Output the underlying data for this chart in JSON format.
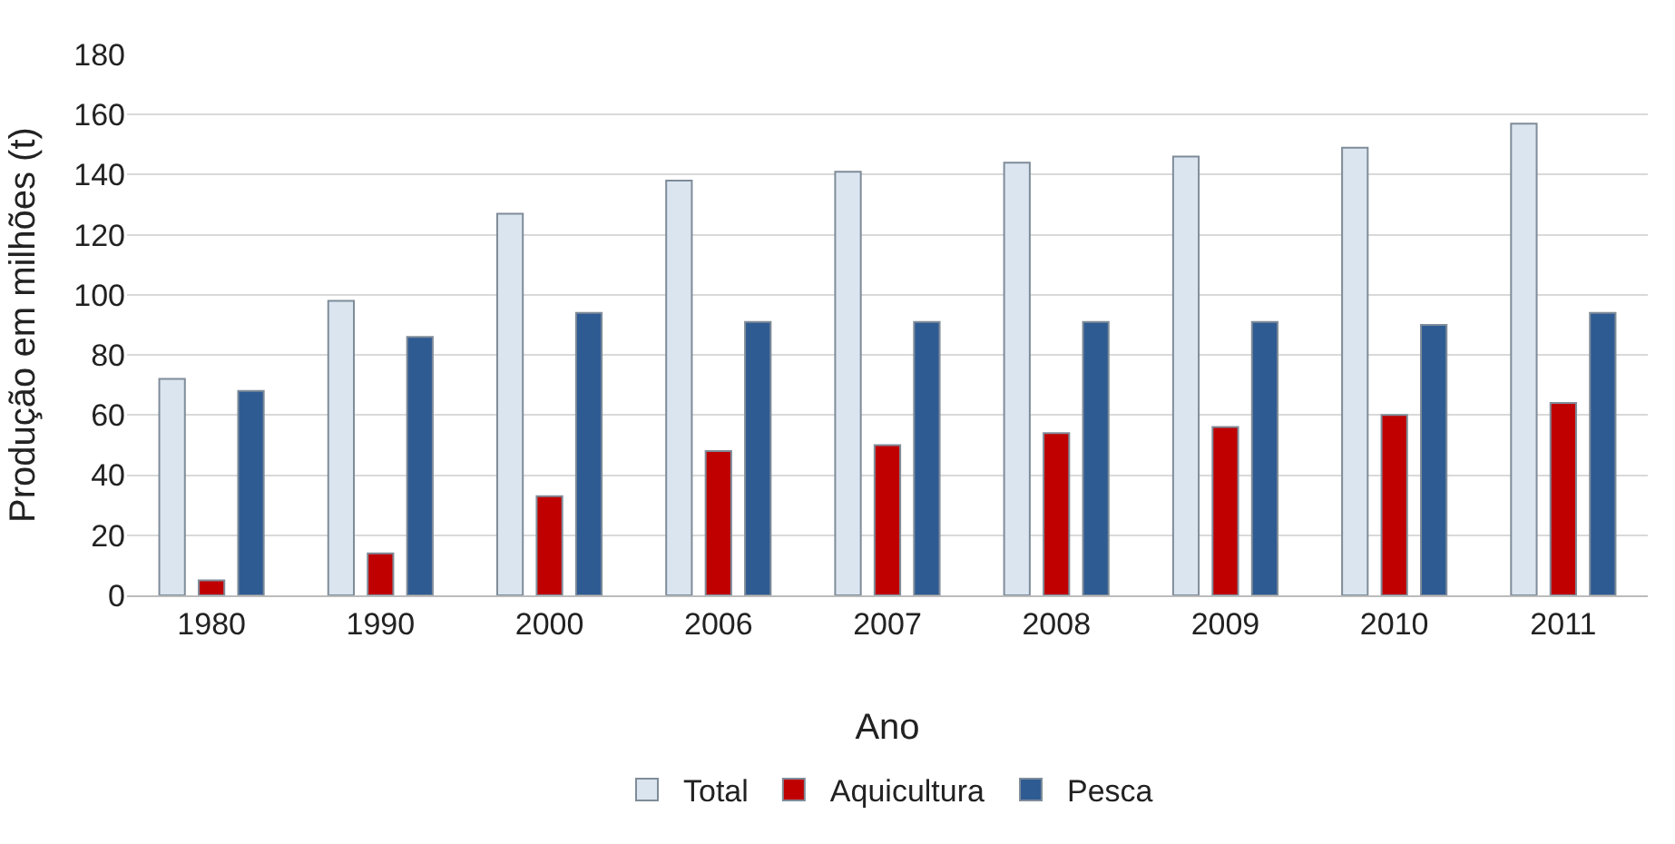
{
  "chart_data": {
    "type": "bar",
    "xlabel": "Ano",
    "ylabel": "Produção em milhões (t)",
    "categories": [
      "1980",
      "1990",
      "2000",
      "2006",
      "2007",
      "2008",
      "2009",
      "2010",
      "2011"
    ],
    "series": [
      {
        "name": "Total",
        "color": "#dbe5f0",
        "values": [
          72,
          98,
          127,
          138,
          141,
          144,
          146,
          149,
          157
        ]
      },
      {
        "name": "Aquicultura",
        "color": "#c00000",
        "values": [
          5,
          14,
          33,
          48,
          50,
          54,
          56,
          60,
          64
        ]
      },
      {
        "name": "Pesca",
        "color": "#2f5b93",
        "values": [
          68,
          86,
          94,
          91,
          91,
          91,
          91,
          90,
          94
        ]
      }
    ],
    "ylim": [
      0,
      180
    ],
    "yticks": [
      0,
      20,
      40,
      60,
      80,
      100,
      120,
      140,
      160,
      180
    ],
    "grid": "y",
    "legend": "bottom"
  }
}
